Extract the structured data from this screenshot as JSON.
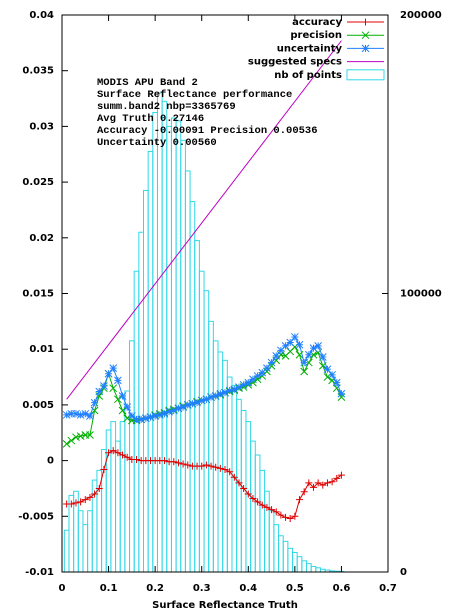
{
  "chart_data": {
    "type": "linespoints",
    "xlabel": "Surface Reflectance Truth",
    "annotation": [
      "MODIS APU Band 2",
      "Surface Reflectance performance",
      "summ.band2 nbp=3365769",
      "Avg Truth 0.27146",
      "Accuracy -0.00091 Precision 0.00536",
      "Uncertainty 0.00560"
    ],
    "xlim": [
      0,
      0.7
    ],
    "xticks": [
      0,
      0.1,
      0.2,
      0.3,
      0.4,
      0.5,
      0.6,
      0.7
    ],
    "ylim": [
      -0.01,
      0.04
    ],
    "yticks": [
      -0.01,
      -0.005,
      0,
      0.005,
      0.01,
      0.015,
      0.02,
      0.025,
      0.03,
      0.035,
      0.04
    ],
    "y2lim": [
      0,
      200000
    ],
    "y2ticks": [
      0,
      100000,
      200000
    ],
    "legend": "top-right",
    "x": [
      0.01,
      0.02,
      0.03,
      0.04,
      0.05,
      0.06,
      0.07,
      0.08,
      0.09,
      0.1,
      0.11,
      0.12,
      0.13,
      0.14,
      0.15,
      0.16,
      0.17,
      0.18,
      0.19,
      0.2,
      0.21,
      0.22,
      0.23,
      0.24,
      0.25,
      0.26,
      0.27,
      0.28,
      0.29,
      0.3,
      0.31,
      0.32,
      0.33,
      0.34,
      0.35,
      0.36,
      0.37,
      0.38,
      0.39,
      0.4,
      0.41,
      0.42,
      0.43,
      0.44,
      0.45,
      0.46,
      0.47,
      0.48,
      0.49,
      0.5,
      0.51,
      0.52,
      0.53,
      0.54,
      0.55,
      0.56,
      0.57,
      0.58,
      0.59,
      0.6
    ],
    "series": [
      {
        "name": "accuracy",
        "color": "#e00000",
        "style": "linespoints",
        "marker": "plus",
        "values": [
          -0.0039,
          -0.0039,
          -0.0038,
          -0.0037,
          -0.0035,
          -0.0033,
          -0.003,
          -0.0025,
          -0.0008,
          0.0007,
          0.0009,
          0.0007,
          0.0005,
          0.0003,
          0.0001,
          0.0001,
          0,
          0,
          0,
          0,
          0,
          0,
          -0.0001,
          -0.0001,
          -0.0002,
          -0.0003,
          -0.0004,
          -0.0005,
          -0.0005,
          -0.0005,
          -0.0004,
          -0.0005,
          -0.0006,
          -0.0007,
          -0.0008,
          -0.001,
          -0.0015,
          -0.002,
          -0.0025,
          -0.003,
          -0.0034,
          -0.0037,
          -0.004,
          -0.0042,
          -0.0044,
          -0.0046,
          -0.0049,
          -0.0051,
          -0.0052,
          -0.005,
          -0.0035,
          -0.0028,
          -0.002,
          -0.0024,
          -0.002,
          -0.0022,
          -0.002,
          -0.0019,
          -0.0016,
          -0.0013
        ]
      },
      {
        "name": "precision",
        "color": "#00b000",
        "style": "linespoints",
        "marker": "cross",
        "values": [
          0.0015,
          0.0018,
          0.0021,
          0.0022,
          0.0023,
          0.0023,
          0.0045,
          0.0058,
          0.0065,
          0.0078,
          0.0065,
          0.0055,
          0.0045,
          0.0038,
          0.0036,
          0.0036,
          0.0037,
          0.0038,
          0.0039,
          0.0041,
          0.0042,
          0.0043,
          0.0045,
          0.0046,
          0.0047,
          0.0049,
          0.005,
          0.0051,
          0.0053,
          0.0054,
          0.0055,
          0.0057,
          0.0058,
          0.0059,
          0.0061,
          0.0062,
          0.0063,
          0.0065,
          0.0066,
          0.0068,
          0.007,
          0.0073,
          0.0076,
          0.008,
          0.0085,
          0.009,
          0.0095,
          0.0094,
          0.0098,
          0.0102,
          0.0095,
          0.008,
          0.0088,
          0.0095,
          0.0097,
          0.0085,
          0.0075,
          0.0072,
          0.0065,
          0.0057
        ]
      },
      {
        "name": "uncertainty",
        "color": "#2080ff",
        "style": "linespoints",
        "marker": "star",
        "values": [
          0.0041,
          0.0042,
          0.0042,
          0.0041,
          0.0042,
          0.004,
          0.0052,
          0.0062,
          0.0067,
          0.0078,
          0.0083,
          0.0072,
          0.0058,
          0.0048,
          0.004,
          0.0037,
          0.0037,
          0.0038,
          0.0039,
          0.004,
          0.0041,
          0.0042,
          0.0044,
          0.0045,
          0.0047,
          0.0048,
          0.005,
          0.0051,
          0.0052,
          0.0054,
          0.0055,
          0.0057,
          0.0058,
          0.006,
          0.0061,
          0.0063,
          0.0064,
          0.0066,
          0.0068,
          0.007,
          0.0073,
          0.0076,
          0.0079,
          0.0083,
          0.0088,
          0.0094,
          0.0099,
          0.0103,
          0.0106,
          0.0111,
          0.0104,
          0.0088,
          0.0095,
          0.0101,
          0.0103,
          0.0093,
          0.0082,
          0.0077,
          0.007,
          0.006
        ]
      },
      {
        "name": "suggested specs",
        "color": "#c000c0",
        "style": "line",
        "x": [
          0.01,
          0.6
        ],
        "values": [
          0.0055,
          0.0377
        ]
      },
      {
        "name": "nb of points",
        "color": "#30d8e8",
        "style": "boxes",
        "axis": "y2",
        "bins": [
          0.005,
          0.015,
          0.025,
          0.035,
          0.045,
          0.055,
          0.065,
          0.075,
          0.085,
          0.095,
          0.105,
          0.115,
          0.125,
          0.135,
          0.145,
          0.155,
          0.165,
          0.175,
          0.185,
          0.195,
          0.205,
          0.215,
          0.225,
          0.235,
          0.245,
          0.255,
          0.265,
          0.275,
          0.285,
          0.295,
          0.305,
          0.315,
          0.325,
          0.335,
          0.345,
          0.355,
          0.365,
          0.375,
          0.385,
          0.395,
          0.405,
          0.415,
          0.425,
          0.435,
          0.445,
          0.455,
          0.465,
          0.475,
          0.485,
          0.495,
          0.505,
          0.515,
          0.525,
          0.535,
          0.545,
          0.555,
          0.565,
          0.575,
          0.585,
          0.595,
          0.605
        ],
        "values": [
          15000,
          27500,
          29000,
          22000,
          17000,
          22000,
          33000,
          36500,
          44000,
          51000,
          54000,
          47000,
          54000,
          65000,
          83000,
          108000,
          122000,
          137000,
          151000,
          165000,
          172000,
          169000,
          160000,
          163000,
          162000,
          155000,
          144000,
          133000,
          119000,
          108000,
          101000,
          90000,
          83000,
          79000,
          76000,
          70000,
          67000,
          62000,
          58000,
          54000,
          47000,
          42000,
          36500,
          29000,
          22000,
          17000,
          13000,
          11000,
          8500,
          7000,
          5500,
          4000,
          3000,
          2000,
          1500,
          1000,
          700,
          400,
          300,
          200
        ]
      }
    ]
  }
}
